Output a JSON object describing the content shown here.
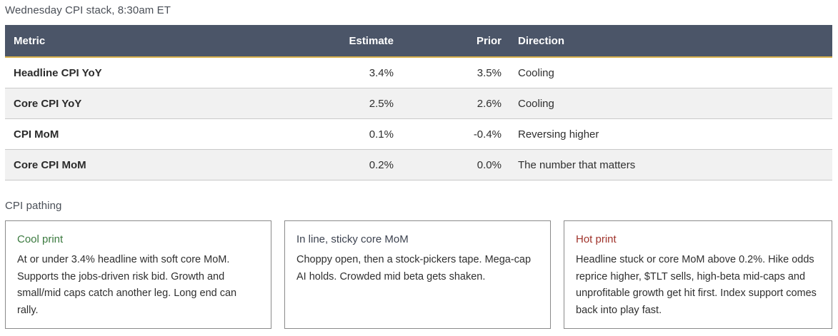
{
  "stack": {
    "title": "Wednesday CPI stack, 8:30am ET",
    "headers": {
      "metric": "Metric",
      "estimate": "Estimate",
      "prior": "Prior",
      "direction": "Direction"
    },
    "rows": [
      {
        "metric": "Headline CPI YoY",
        "estimate": "3.4%",
        "prior": "3.5%",
        "direction": "Cooling"
      },
      {
        "metric": "Core CPI YoY",
        "estimate": "2.5%",
        "prior": "2.6%",
        "direction": "Cooling"
      },
      {
        "metric": "CPI MoM",
        "estimate": "0.1%",
        "prior": "-0.4%",
        "direction": "Reversing higher"
      },
      {
        "metric": "Core CPI MoM",
        "estimate": "0.2%",
        "prior": "0.0%",
        "direction": "The number that matters"
      }
    ]
  },
  "pathing": {
    "title": "CPI pathing",
    "cards": [
      {
        "title": "Cool print",
        "body": "At or under 3.4% headline with soft core MoM. Supports the jobs-driven risk bid. Growth and small/mid caps catch another leg. Long end can rally."
      },
      {
        "title": "In line, sticky core MoM",
        "body": "Choppy open, then a stock-pickers tape. Mega-cap AI holds. Crowded mid beta gets shaken."
      },
      {
        "title": "Hot print",
        "body": "Headline stuck or core MoM above 0.2%. Hike odds reprice higher, $TLT sells, high-beta mid-caps and unprofitable growth get hit first. Index support comes back into play fast."
      }
    ]
  },
  "colors": {
    "header_bg": "#4b5568",
    "header_rule": "#d8b04c",
    "cool": "#3b7a3f",
    "hot": "#a0342c"
  }
}
